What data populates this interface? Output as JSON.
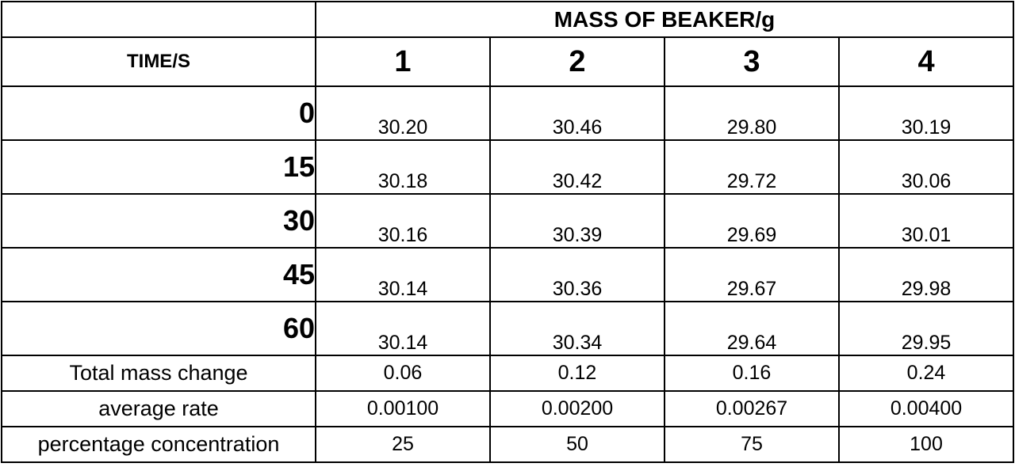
{
  "table": {
    "group_header": "MASS OF BEAKER/g",
    "row_header": "TIME/S",
    "columns": [
      "1",
      "2",
      "3",
      "4"
    ],
    "rows": [
      {
        "time": "0",
        "values": [
          "30.20",
          "30.46",
          "29.80",
          "30.19"
        ]
      },
      {
        "time": "15",
        "values": [
          "30.18",
          "30.42",
          "29.72",
          "30.06"
        ]
      },
      {
        "time": "30",
        "values": [
          "30.16",
          "30.39",
          "29.69",
          "30.01"
        ]
      },
      {
        "time": "45",
        "values": [
          "30.14",
          "30.36",
          "29.67",
          "29.98"
        ]
      },
      {
        "time": "60",
        "values": [
          "30.14",
          "30.34",
          "29.64",
          "29.95"
        ]
      }
    ],
    "summary": [
      {
        "label": "Total mass change",
        "values": [
          "0.06",
          "0.12",
          "0.16",
          "0.24"
        ]
      },
      {
        "label": "average rate",
        "values": [
          "0.00100",
          "0.00200",
          "0.00267",
          "0.00400"
        ]
      },
      {
        "label": "percentage concentration",
        "values": [
          "25",
          "50",
          "75",
          "100"
        ]
      }
    ]
  }
}
